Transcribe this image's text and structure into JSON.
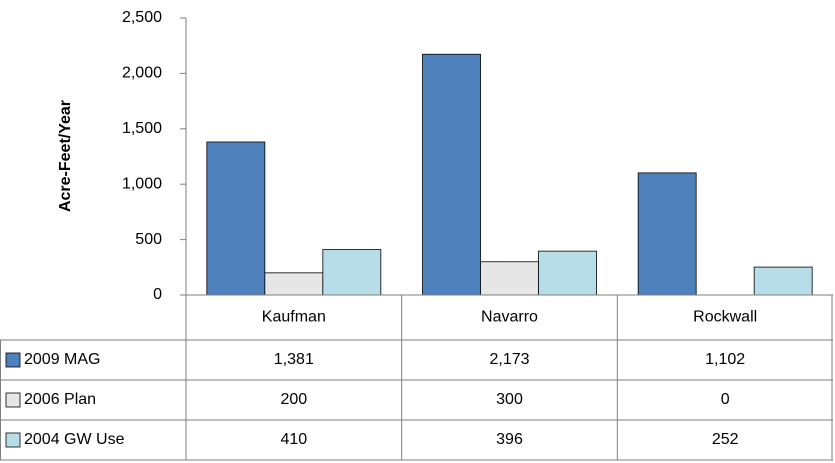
{
  "chart_data": {
    "type": "bar",
    "y_label": "Acre-Feet/Year",
    "categories": [
      "Kaufman",
      "Navarro",
      "Rockwall"
    ],
    "series": [
      {
        "name": "2009 MAG",
        "color": "#4f81bd",
        "values": [
          1381,
          2173,
          1102
        ],
        "value_labels": [
          "1,381",
          "2,173",
          "1,102"
        ]
      },
      {
        "name": "2006 Plan",
        "color": "#e6e6e6",
        "values": [
          200,
          300,
          0
        ],
        "value_labels": [
          "200",
          "300",
          "0"
        ]
      },
      {
        "name": "2004 GW Use",
        "color": "#b7dee8",
        "values": [
          410,
          396,
          252
        ],
        "value_labels": [
          "410",
          "396",
          "252"
        ]
      }
    ],
    "ylim": [
      0,
      2500
    ],
    "yticks": [
      0,
      500,
      {
        "value": 1000,
        "label": "1,000"
      },
      {
        "value": 1500,
        "label": "1,500"
      },
      {
        "value": 2000,
        "label": "2,000"
      },
      {
        "value": 2500,
        "label": "2,500"
      }
    ],
    "grid": false
  }
}
